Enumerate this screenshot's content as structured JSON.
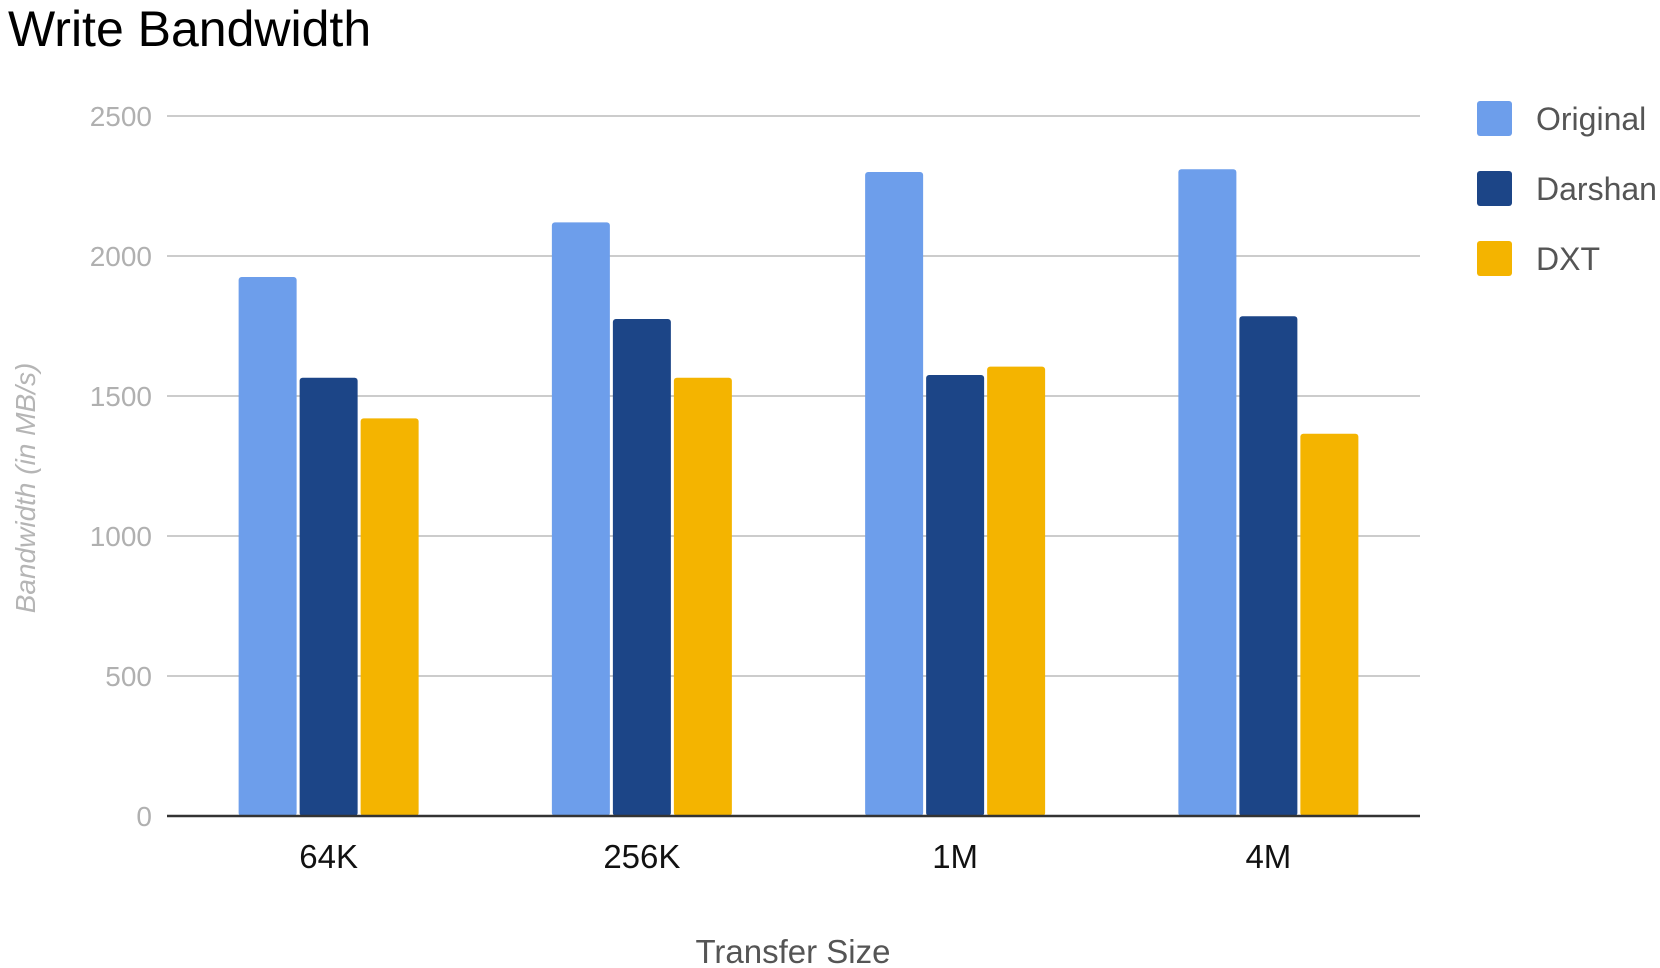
{
  "chart_data": {
    "type": "bar",
    "title": "Write Bandwidth",
    "xlabel": "Transfer Size",
    "ylabel": "Bandwidth (in MB/s)",
    "categories": [
      "64K",
      "256K",
      "1M",
      "4M"
    ],
    "series": [
      {
        "name": "Original",
        "color": "#6d9eeb",
        "values": [
          1925,
          2120,
          2300,
          2310
        ]
      },
      {
        "name": "Darshan",
        "color": "#1c4587",
        "values": [
          1565,
          1775,
          1575,
          1785
        ]
      },
      {
        "name": "DXT",
        "color": "#f4b400",
        "values": [
          1420,
          1565,
          1605,
          1365
        ]
      }
    ],
    "ylim": [
      0,
      2500
    ],
    "yticks": [
      0,
      500,
      1000,
      1500,
      2000,
      2500
    ],
    "grid": true,
    "legend": "right"
  }
}
